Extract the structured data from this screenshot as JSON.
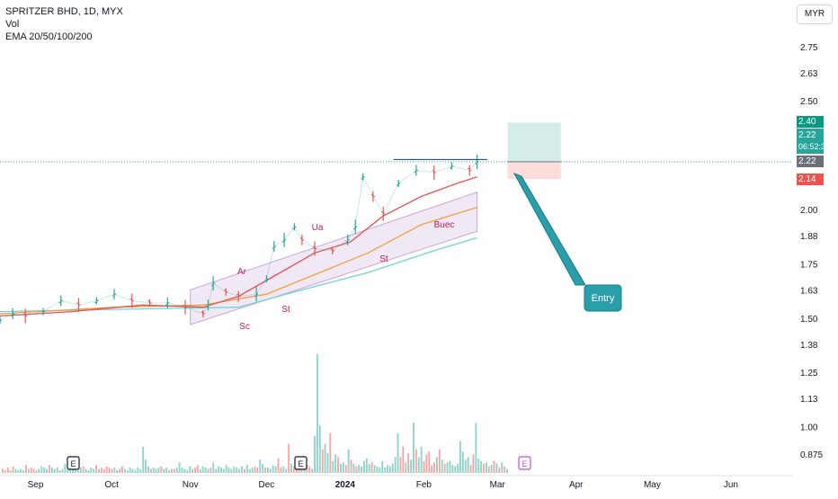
{
  "legend": {
    "symbol": "SPRITZER BHD, 1D, MYX",
    "vol": "Vol",
    "ema": "EMA 20/50/100/200"
  },
  "currency_button": "MYR",
  "price_labels": {
    "target": "2.40",
    "last": "2.22",
    "countdown": "06:52:34",
    "entry": "2.22",
    "stop": "2.14"
  },
  "annotations": {
    "sc": "Sc",
    "ar": "Ar",
    "st1": "St",
    "ua": "Ua",
    "st2": "St",
    "buec": "Buec",
    "entry_callout": "Entry"
  },
  "events": [
    "E",
    "E",
    "E"
  ],
  "colors": {
    "up": "#26a69a",
    "down": "#ef5350",
    "ema20": "#e55353",
    "ema50": "#f0a040",
    "ema100": "#6fd4d4",
    "channel": "#9b59b6",
    "annotation": "#c2185b",
    "callout": "#1e9aa6"
  },
  "chart_data": {
    "type": "line",
    "title": "SPRITZER BHD, 1D, MYX",
    "y_ticks": [
      "2.75",
      "2.63",
      "2.50",
      "2.40",
      "2.22",
      "2.14",
      "2.00",
      "1.88",
      "1.75",
      "1.63",
      "1.50",
      "1.38",
      "1.25",
      "1.13",
      "1.00",
      "0.875"
    ],
    "x_ticks": [
      "Sep",
      "Oct",
      "Nov",
      "Dec",
      "2024",
      "Feb",
      "Mar",
      "Apr",
      "May",
      "Jun"
    ],
    "price_series": [
      [
        "2023-08-18",
        1.49
      ],
      [
        "2023-08-23",
        1.52
      ],
      [
        "2023-08-28",
        1.51
      ],
      [
        "2023-09-04",
        1.53
      ],
      [
        "2023-09-11",
        1.58
      ],
      [
        "2023-09-18",
        1.56
      ],
      [
        "2023-09-25",
        1.58
      ],
      [
        "2023-10-02",
        1.61
      ],
      [
        "2023-10-09",
        1.58
      ],
      [
        "2023-10-16",
        1.57
      ],
      [
        "2023-10-23",
        1.57
      ],
      [
        "2023-10-30",
        1.55
      ],
      [
        "2023-11-06",
        1.52
      ],
      [
        "2023-11-08",
        1.56
      ],
      [
        "2023-11-10",
        1.66
      ],
      [
        "2023-11-15",
        1.62
      ],
      [
        "2023-11-20",
        1.6
      ],
      [
        "2023-11-27",
        1.61
      ],
      [
        "2023-12-01",
        1.68
      ],
      [
        "2023-12-04",
        1.83
      ],
      [
        "2023-12-08",
        1.86
      ],
      [
        "2023-12-12",
        1.92
      ],
      [
        "2023-12-15",
        1.86
      ],
      [
        "2023-12-20",
        1.82
      ],
      [
        "2023-12-27",
        1.81
      ],
      [
        "2024-01-02",
        1.86
      ],
      [
        "2024-01-05",
        1.92
      ],
      [
        "2024-01-08",
        2.15
      ],
      [
        "2024-01-12",
        2.06
      ],
      [
        "2024-01-16",
        1.98
      ],
      [
        "2024-01-22",
        2.12
      ],
      [
        "2024-01-29",
        2.18
      ],
      [
        "2024-02-05",
        2.17
      ],
      [
        "2024-02-12",
        2.2
      ],
      [
        "2024-02-19",
        2.18
      ],
      [
        "2024-02-22",
        2.22
      ]
    ],
    "ema20": [
      [
        "2023-08-18",
        1.51
      ],
      [
        "2023-09-15",
        1.53
      ],
      [
        "2023-10-13",
        1.56
      ],
      [
        "2023-11-06",
        1.55
      ],
      [
        "2023-11-20",
        1.6
      ],
      [
        "2023-12-05",
        1.7
      ],
      [
        "2023-12-20",
        1.8
      ],
      [
        "2024-01-03",
        1.85
      ],
      [
        "2024-01-16",
        1.97
      ],
      [
        "2024-01-31",
        2.06
      ],
      [
        "2024-02-14",
        2.12
      ],
      [
        "2024-02-22",
        2.15
      ]
    ],
    "ema50": [
      [
        "2023-08-18",
        1.52
      ],
      [
        "2023-10-02",
        1.55
      ],
      [
        "2023-11-06",
        1.56
      ],
      [
        "2023-12-01",
        1.61
      ],
      [
        "2023-12-20",
        1.7
      ],
      [
        "2024-01-10",
        1.8
      ],
      [
        "2024-01-31",
        1.93
      ],
      [
        "2024-02-22",
        2.01
      ]
    ],
    "ema100": [
      [
        "2023-08-18",
        1.53
      ],
      [
        "2023-10-02",
        1.54
      ],
      [
        "2023-11-20",
        1.55
      ],
      [
        "2023-12-15",
        1.63
      ],
      [
        "2024-01-10",
        1.71
      ],
      [
        "2024-02-05",
        1.81
      ],
      [
        "2024-02-22",
        1.87
      ]
    ],
    "channel_upper": [
      [
        "2023-11-01",
        1.63
      ],
      [
        "2024-02-22",
        2.08
      ]
    ],
    "channel_lower": [
      [
        "2023-11-01",
        1.47
      ],
      [
        "2024-02-22",
        1.9
      ]
    ],
    "resistance": {
      "from": "2024-01-20",
      "to": "2024-02-26",
      "value": 2.23
    },
    "position": {
      "from": "2024-03-05",
      "to": "2024-03-26",
      "entry": 2.22,
      "target": 2.4,
      "stop": 2.14
    },
    "volume": [
      3,
      2,
      4,
      2,
      5,
      3,
      2,
      3,
      2,
      6,
      3,
      4,
      3,
      2,
      3,
      5,
      4,
      3,
      6,
      4,
      3,
      4,
      2,
      3,
      7,
      3,
      5,
      4,
      3,
      2,
      4,
      5,
      3,
      2,
      4,
      3,
      6,
      3,
      4,
      3,
      5,
      4,
      3,
      4,
      2,
      3,
      5,
      3,
      2,
      4,
      3,
      2,
      4,
      3,
      20,
      10,
      5,
      3,
      4,
      3,
      4,
      5,
      3,
      4,
      2,
      3,
      3,
      4,
      8,
      4,
      3,
      2,
      5,
      3,
      4,
      6,
      3,
      5,
      4,
      3,
      4,
      8,
      3,
      5,
      4,
      3,
      6,
      4,
      3,
      5,
      4,
      3,
      5,
      3,
      6,
      3,
      4,
      5,
      4,
      10,
      7,
      4,
      4,
      3,
      6,
      5,
      11,
      4,
      5,
      3,
      22,
      7,
      5,
      4,
      3,
      4,
      8,
      6,
      5,
      3,
      28,
      90,
      36,
      18,
      22,
      15,
      30,
      9,
      14,
      12,
      7,
      8,
      6,
      18,
      10,
      7,
      5,
      6,
      5,
      9,
      11,
      7,
      8,
      6,
      5,
      4,
      9,
      4,
      6,
      5,
      7,
      12,
      30,
      12,
      20,
      8,
      15,
      10,
      38,
      18,
      12,
      20,
      9,
      14,
      16,
      6,
      8,
      12,
      18,
      10,
      7,
      8,
      9,
      6,
      5,
      7,
      24,
      16,
      10,
      12,
      6,
      14,
      38,
      11,
      9,
      7,
      8,
      5,
      6,
      9,
      7,
      4,
      8,
      5,
      3
    ]
  }
}
